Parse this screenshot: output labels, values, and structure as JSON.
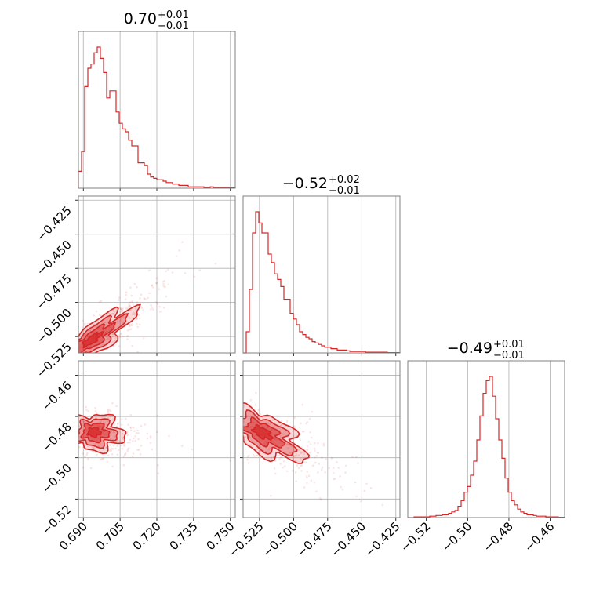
{
  "chart_data": {
    "type": "corner",
    "color": "#d62728",
    "parameters": [
      {
        "median": "0.70",
        "plus": "+0.01",
        "minus": "−0.01",
        "range": [
          0.688,
          0.752
        ],
        "ticks": [
          0.69,
          0.705,
          0.72,
          0.735,
          0.75
        ],
        "tick_labels": [
          "0.690",
          "0.705",
          "0.720",
          "0.735",
          "0.750"
        ]
      },
      {
        "median": "−0.52",
        "plus": "+0.02",
        "minus": "−0.01",
        "range": [
          -0.537,
          -0.422
        ],
        "ticks": [
          -0.525,
          -0.5,
          -0.475,
          -0.45,
          -0.425
        ],
        "tick_labels": [
          "−0.525",
          "−0.500",
          "−0.475",
          "−0.450",
          "−0.425"
        ]
      },
      {
        "median": "−0.49",
        "plus": "+0.01",
        "minus": "−0.01",
        "range": [
          -0.529,
          -0.453
        ],
        "ticks": [
          -0.52,
          -0.5,
          -0.48,
          -0.46
        ],
        "tick_labels": [
          "−0.52",
          "−0.50",
          "−0.48",
          "−0.46"
        ]
      }
    ],
    "histograms": [
      {
        "bins": [
          0.688,
          0.752
        ],
        "counts": [
          0.12,
          0.26,
          0.72,
          0.85,
          0.88,
          0.96,
          1.0,
          0.92,
          0.82,
          0.64,
          0.69,
          0.69,
          0.54,
          0.46,
          0.42,
          0.4,
          0.34,
          0.3,
          0.3,
          0.18,
          0.18,
          0.16,
          0.1,
          0.08,
          0.07,
          0.06,
          0.06,
          0.05,
          0.04,
          0.04,
          0.03,
          0.03,
          0.02,
          0.02,
          0.02,
          0.01,
          0.01,
          0.01,
          0.01,
          0.01,
          0.005,
          0.005,
          0.01,
          0.005,
          0.005,
          0.005,
          0.005,
          0.005,
          0.002,
          0.002
        ]
      },
      {
        "bins": [
          -0.537,
          -0.422
        ],
        "counts": [
          0.0,
          0.15,
          0.45,
          0.85,
          1.0,
          0.92,
          0.85,
          0.85,
          0.7,
          0.64,
          0.56,
          0.52,
          0.47,
          0.38,
          0.38,
          0.28,
          0.24,
          0.2,
          0.15,
          0.13,
          0.11,
          0.1,
          0.08,
          0.07,
          0.06,
          0.05,
          0.04,
          0.04,
          0.03,
          0.03,
          0.02,
          0.02,
          0.02,
          0.015,
          0.01,
          0.01,
          0.01,
          0.01,
          0.01,
          0.005,
          0.005,
          0.005,
          0.005,
          0.005,
          0.005,
          0.005,
          0.002,
          0.002,
          0.002,
          0.002
        ]
      },
      {
        "bins": [
          -0.529,
          -0.453
        ],
        "counts": [
          0.0,
          0.0,
          0.005,
          0.005,
          0.005,
          0.005,
          0.005,
          0.01,
          0.01,
          0.015,
          0.015,
          0.02,
          0.02,
          0.03,
          0.04,
          0.05,
          0.08,
          0.12,
          0.18,
          0.22,
          0.3,
          0.4,
          0.55,
          0.72,
          0.88,
          0.97,
          1.0,
          0.86,
          0.7,
          0.55,
          0.42,
          0.28,
          0.18,
          0.12,
          0.09,
          0.06,
          0.04,
          0.03,
          0.02,
          0.02,
          0.015,
          0.01,
          0.01,
          0.01,
          0.005,
          0.005,
          0.005,
          0.005,
          0.002,
          0.002
        ]
      }
    ],
    "pairs": [
      {
        "x_param": 0,
        "y_param": 1,
        "center": [
          0.693,
          -0.528
        ],
        "principal": [
          0.0123,
          0.0169
        ],
        "minor": [
          0.0032,
          -0.0026
        ],
        "scatter_count": 360
      },
      {
        "x_param": 0,
        "y_param": 2,
        "center": [
          0.694,
          -0.4875
        ],
        "principal": [
          0.0085,
          -0.0024
        ],
        "minor": [
          0.0017,
          0.0045
        ],
        "scatter_count": 320
      },
      {
        "x_param": 1,
        "y_param": 2,
        "center": [
          -0.524,
          -0.4875
        ],
        "principal": [
          0.0222,
          -0.0086
        ],
        "minor": [
          0.004,
          0.0042
        ],
        "scatter_count": 340
      }
    ],
    "contour_levels": [
      0.5,
      1.0,
      1.5,
      2.0
    ],
    "grid": true
  }
}
